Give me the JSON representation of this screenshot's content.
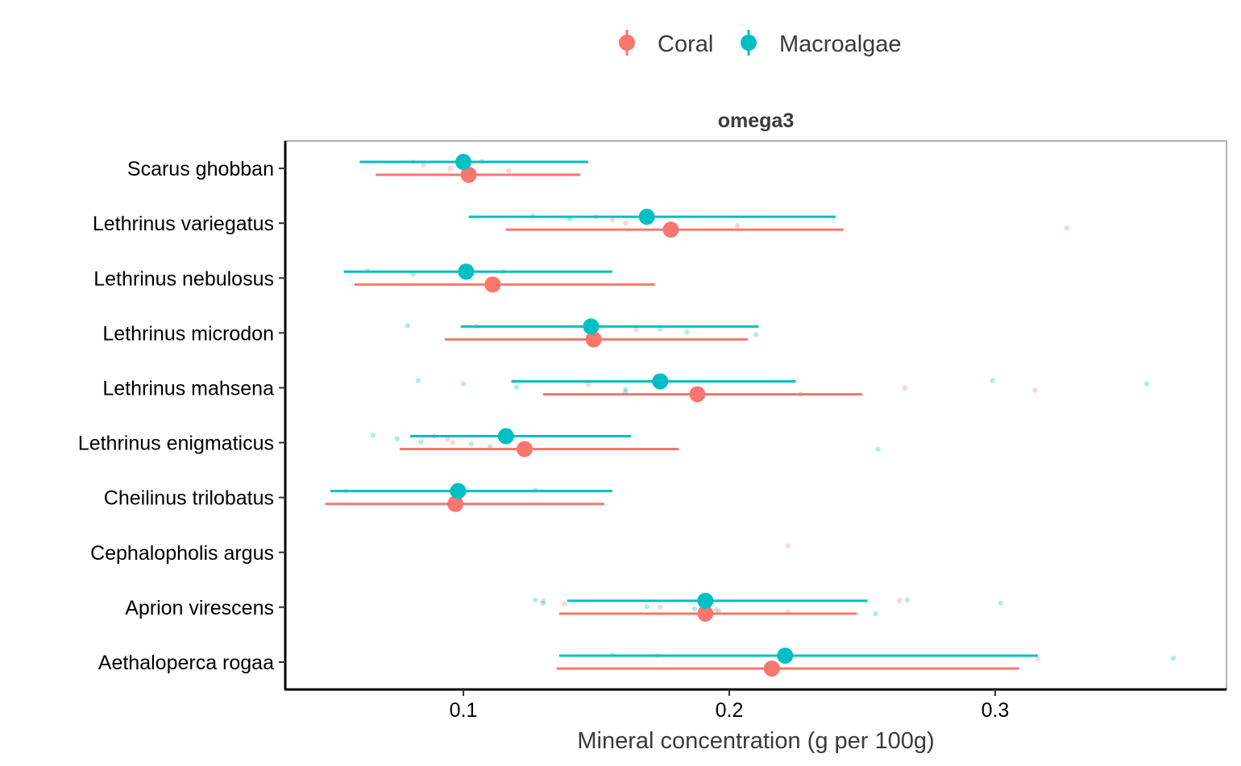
{
  "legend": {
    "items": [
      {
        "label": "Coral",
        "color": "#F8766D"
      },
      {
        "label": "Macroalgae",
        "color": "#00BFC4"
      }
    ]
  },
  "chart_data": {
    "type": "scatter",
    "strip_title": "omega3",
    "xlabel": "Mineral concentration (g per 100g)",
    "ylabel": "",
    "xlim": [
      0.033,
      0.387
    ],
    "xticks": [
      0.1,
      0.2,
      0.3
    ],
    "xtick_labels": [
      "0.1",
      "0.2",
      "0.3"
    ],
    "grid": false,
    "legend_position": "top",
    "categories": [
      "Scarus ghobban",
      "Lethrinus variegatus",
      "Lethrinus nebulosus",
      "Lethrinus microdon",
      "Lethrinus mahsena",
      "Lethrinus enigmaticus",
      "Cheilinus trilobatus",
      "Cephalopholis argus",
      "Aprion virescens",
      "Aethaloperca rogaa"
    ],
    "series": [
      {
        "name": "Coral",
        "color": "#F8766D",
        "summary": [
          {
            "species": "Scarus ghobban",
            "mean": 0.102,
            "lo": 0.067,
            "hi": 0.144
          },
          {
            "species": "Lethrinus variegatus",
            "mean": 0.178,
            "lo": 0.116,
            "hi": 0.243
          },
          {
            "species": "Lethrinus nebulosus",
            "mean": 0.111,
            "lo": 0.059,
            "hi": 0.172
          },
          {
            "species": "Lethrinus microdon",
            "mean": 0.149,
            "lo": 0.093,
            "hi": 0.207
          },
          {
            "species": "Lethrinus mahsena",
            "mean": 0.188,
            "lo": 0.13,
            "hi": 0.25
          },
          {
            "species": "Lethrinus enigmaticus",
            "mean": 0.123,
            "lo": 0.076,
            "hi": 0.181
          },
          {
            "species": "Cheilinus trilobatus",
            "mean": 0.097,
            "lo": 0.048,
            "hi": 0.153
          },
          {
            "species": "Aprion virescens",
            "mean": 0.191,
            "lo": 0.136,
            "hi": 0.248
          },
          {
            "species": "Aethaloperca rogaa",
            "mean": 0.216,
            "lo": 0.135,
            "hi": 0.309
          }
        ],
        "points": [
          {
            "species": "Scarus ghobban",
            "x": [
              0.081,
              0.085,
              0.095,
              0.117
            ]
          },
          {
            "species": "Lethrinus variegatus",
            "x": [
              0.15,
              0.156,
              0.161,
              0.203,
              0.327
            ]
          },
          {
            "species": "Lethrinus nebulosus",
            "x": [
              0.115
            ]
          },
          {
            "species": "Lethrinus microdon",
            "x": [
              0.105,
              0.165
            ]
          },
          {
            "species": "Lethrinus mahsena",
            "x": [
              0.119,
              0.147,
              0.266,
              0.315
            ]
          },
          {
            "species": "Lethrinus enigmaticus",
            "x": [
              0.089,
              0.094,
              0.096
            ]
          },
          {
            "species": "Cheilinus trilobatus",
            "x": [
              0.056
            ]
          },
          {
            "species": "Cephalopholis argus",
            "x": [
              0.222
            ]
          },
          {
            "species": "Aprion virescens",
            "x": [
              0.13,
              0.138,
              0.174,
              0.195,
              0.222,
              0.264
            ]
          },
          {
            "species": "Aethaloperca rogaa",
            "x": [
              0.173,
              0.316
            ]
          }
        ]
      },
      {
        "name": "Macroalgae",
        "color": "#00BFC4",
        "summary": [
          {
            "species": "Scarus ghobban",
            "mean": 0.1,
            "lo": 0.061,
            "hi": 0.147
          },
          {
            "species": "Lethrinus variegatus",
            "mean": 0.169,
            "lo": 0.102,
            "hi": 0.24
          },
          {
            "species": "Lethrinus nebulosus",
            "mean": 0.101,
            "lo": 0.055,
            "hi": 0.156
          },
          {
            "species": "Lethrinus microdon",
            "mean": 0.148,
            "lo": 0.099,
            "hi": 0.211
          },
          {
            "species": "Lethrinus mahsena",
            "mean": 0.174,
            "lo": 0.118,
            "hi": 0.225
          },
          {
            "species": "Lethrinus enigmaticus",
            "mean": 0.116,
            "lo": 0.08,
            "hi": 0.163
          },
          {
            "species": "Cheilinus trilobatus",
            "mean": 0.098,
            "lo": 0.05,
            "hi": 0.156
          },
          {
            "species": "Aprion virescens",
            "mean": 0.191,
            "lo": 0.139,
            "hi": 0.252
          },
          {
            "species": "Aethaloperca rogaa",
            "mean": 0.221,
            "lo": 0.136,
            "hi": 0.316
          }
        ],
        "points": [
          {
            "species": "Scarus ghobban",
            "x": [
              0.107
            ]
          },
          {
            "species": "Lethrinus variegatus",
            "x": [
              0.126,
              0.14
            ]
          },
          {
            "species": "Lethrinus nebulosus",
            "x": [
              0.064,
              0.081
            ]
          },
          {
            "species": "Lethrinus microdon",
            "x": [
              0.079,
              0.174,
              0.184,
              0.21
            ]
          },
          {
            "species": "Lethrinus mahsena",
            "x": [
              0.083,
              0.1,
              0.12,
              0.161,
              0.161,
              0.227,
              0.299,
              0.357
            ]
          },
          {
            "species": "Lethrinus enigmaticus",
            "x": [
              0.066,
              0.075,
              0.084,
              0.103,
              0.11,
              0.256
            ]
          },
          {
            "species": "Cheilinus trilobatus",
            "x": [
              0.127
            ]
          },
          {
            "species": "Aprion virescens",
            "x": [
              0.127,
              0.13,
              0.169,
              0.187,
              0.196,
              0.255,
              0.267,
              0.302
            ]
          },
          {
            "species": "Aethaloperca rogaa",
            "x": [
              0.156,
              0.367
            ]
          }
        ]
      }
    ]
  }
}
